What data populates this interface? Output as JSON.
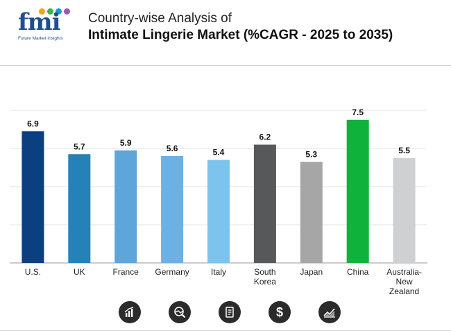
{
  "header": {
    "logo_text": "fmi",
    "logo_subtitle": "Future Market Insights",
    "title_line1": "Country-wise Analysis of",
    "title_line2": "Intimate Lingerie Market (%CAGR - 2025 to 2035)"
  },
  "colors": {
    "logo_dots": [
      "#f2a21b",
      "#3cb54a",
      "#1f9ad6",
      "#9b59b6"
    ]
  },
  "chart_data": {
    "type": "bar",
    "title": "Intimate Lingerie Market (%CAGR - 2025 to 2035)",
    "xlabel": "",
    "ylabel": "",
    "ylim": [
      0,
      8
    ],
    "grid": true,
    "categories": [
      "U.S.",
      "UK",
      "France",
      "Germany",
      "Italy",
      "South Korea",
      "Japan",
      "China",
      "Australia-New Zealand"
    ],
    "category_lines": [
      [
        "U.S."
      ],
      [
        "UK"
      ],
      [
        "France"
      ],
      [
        "Germany"
      ],
      [
        "Italy"
      ],
      [
        "South",
        "Korea"
      ],
      [
        "Japan"
      ],
      [
        "China"
      ],
      [
        "Australia-",
        "New",
        "Zealand"
      ]
    ],
    "values": [
      6.9,
      5.7,
      5.9,
      5.6,
      5.4,
      6.2,
      5.3,
      7.5,
      5.5
    ],
    "value_labels": [
      "6.9",
      "5.7",
      "5.9",
      "5.6",
      "5.4",
      "6.2",
      "5.3",
      "7.5",
      "5.5"
    ],
    "colors": [
      "#0b3f7f",
      "#2581b8",
      "#5ea5d9",
      "#6db0e3",
      "#7cc3ee",
      "#575859",
      "#a6a6a6",
      "#0fb23a",
      "#cfd0d1"
    ]
  },
  "icons": [
    {
      "name": "bar-chart-icon"
    },
    {
      "name": "pie-search-icon"
    },
    {
      "name": "report-icon"
    },
    {
      "name": "dollar-icon"
    },
    {
      "name": "trend-chart-icon"
    }
  ]
}
